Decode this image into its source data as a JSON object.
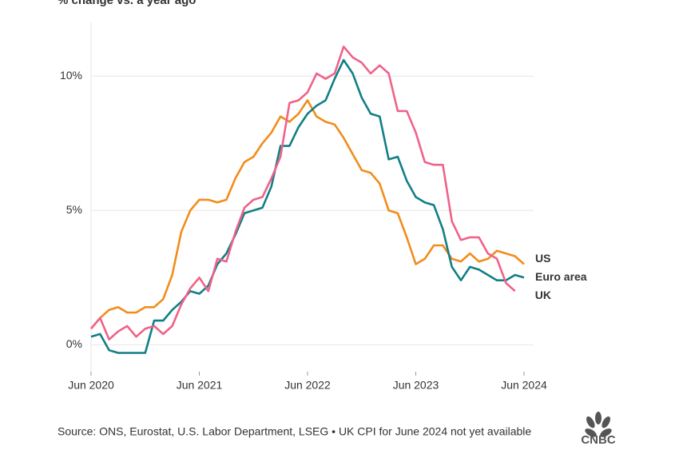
{
  "chart_data": {
    "type": "line",
    "subtitle": "% change vs. a year ago",
    "source": "Source: ONS, Eurostat, U.S. Labor Department, LSEG • UK CPI for June 2024 not yet available",
    "logo_text": "CNBC",
    "categories": [
      "Jun 2020",
      null,
      null,
      null,
      null,
      null,
      null,
      null,
      null,
      null,
      null,
      null,
      "Jun 2021",
      null,
      null,
      null,
      null,
      null,
      null,
      null,
      null,
      null,
      null,
      null,
      "Jun 2022",
      null,
      null,
      null,
      null,
      null,
      null,
      null,
      null,
      null,
      null,
      null,
      "Jun 2023",
      null,
      null,
      null,
      null,
      null,
      null,
      null,
      null,
      null,
      null,
      null,
      "Jun 2024"
    ],
    "ylim": [
      -1,
      12
    ],
    "yticks": [
      {
        "value": 0,
        "label": "0%"
      },
      {
        "value": 5,
        "label": "5%"
      },
      {
        "value": 10,
        "label": "10%"
      }
    ],
    "grid": true,
    "series": [
      {
        "name": "US",
        "color": "#f28c1c",
        "values": [
          0.6,
          1.0,
          1.3,
          1.4,
          1.2,
          1.2,
          1.4,
          1.4,
          1.7,
          2.6,
          4.2,
          5.0,
          5.4,
          5.4,
          5.3,
          5.4,
          6.2,
          6.8,
          7.0,
          7.5,
          7.9,
          8.5,
          8.3,
          8.6,
          9.1,
          8.5,
          8.3,
          8.2,
          7.7,
          7.1,
          6.5,
          6.4,
          6.0,
          5.0,
          4.9,
          4.0,
          3.0,
          3.2,
          3.7,
          3.7,
          3.2,
          3.1,
          3.4,
          3.1,
          3.2,
          3.5,
          3.4,
          3.3,
          3.0
        ]
      },
      {
        "name": "Euro area",
        "color": "#127f86",
        "values": [
          0.3,
          0.4,
          -0.2,
          -0.3,
          -0.3,
          -0.3,
          -0.3,
          0.9,
          0.9,
          1.3,
          1.6,
          2.0,
          1.9,
          2.2,
          3.0,
          3.4,
          4.1,
          4.9,
          5.0,
          5.1,
          5.9,
          7.4,
          7.4,
          8.1,
          8.6,
          8.9,
          9.1,
          9.9,
          10.6,
          10.1,
          9.2,
          8.6,
          8.5,
          6.9,
          7.0,
          6.1,
          5.5,
          5.3,
          5.2,
          4.3,
          2.9,
          2.4,
          2.9,
          2.8,
          2.6,
          2.4,
          2.4,
          2.6,
          2.5
        ]
      },
      {
        "name": "UK",
        "color": "#f0628a",
        "values": [
          0.6,
          1.0,
          0.2,
          0.5,
          0.7,
          0.3,
          0.6,
          0.7,
          0.4,
          0.7,
          1.5,
          2.1,
          2.5,
          2.0,
          3.2,
          3.1,
          4.2,
          5.1,
          5.4,
          5.5,
          6.2,
          7.0,
          9.0,
          9.1,
          9.4,
          10.1,
          9.9,
          10.1,
          11.1,
          10.7,
          10.5,
          10.1,
          10.4,
          10.1,
          8.7,
          8.7,
          7.9,
          6.8,
          6.7,
          6.7,
          4.6,
          3.9,
          4.0,
          4.0,
          3.4,
          3.2,
          2.3,
          2.0,
          null
        ]
      }
    ]
  }
}
